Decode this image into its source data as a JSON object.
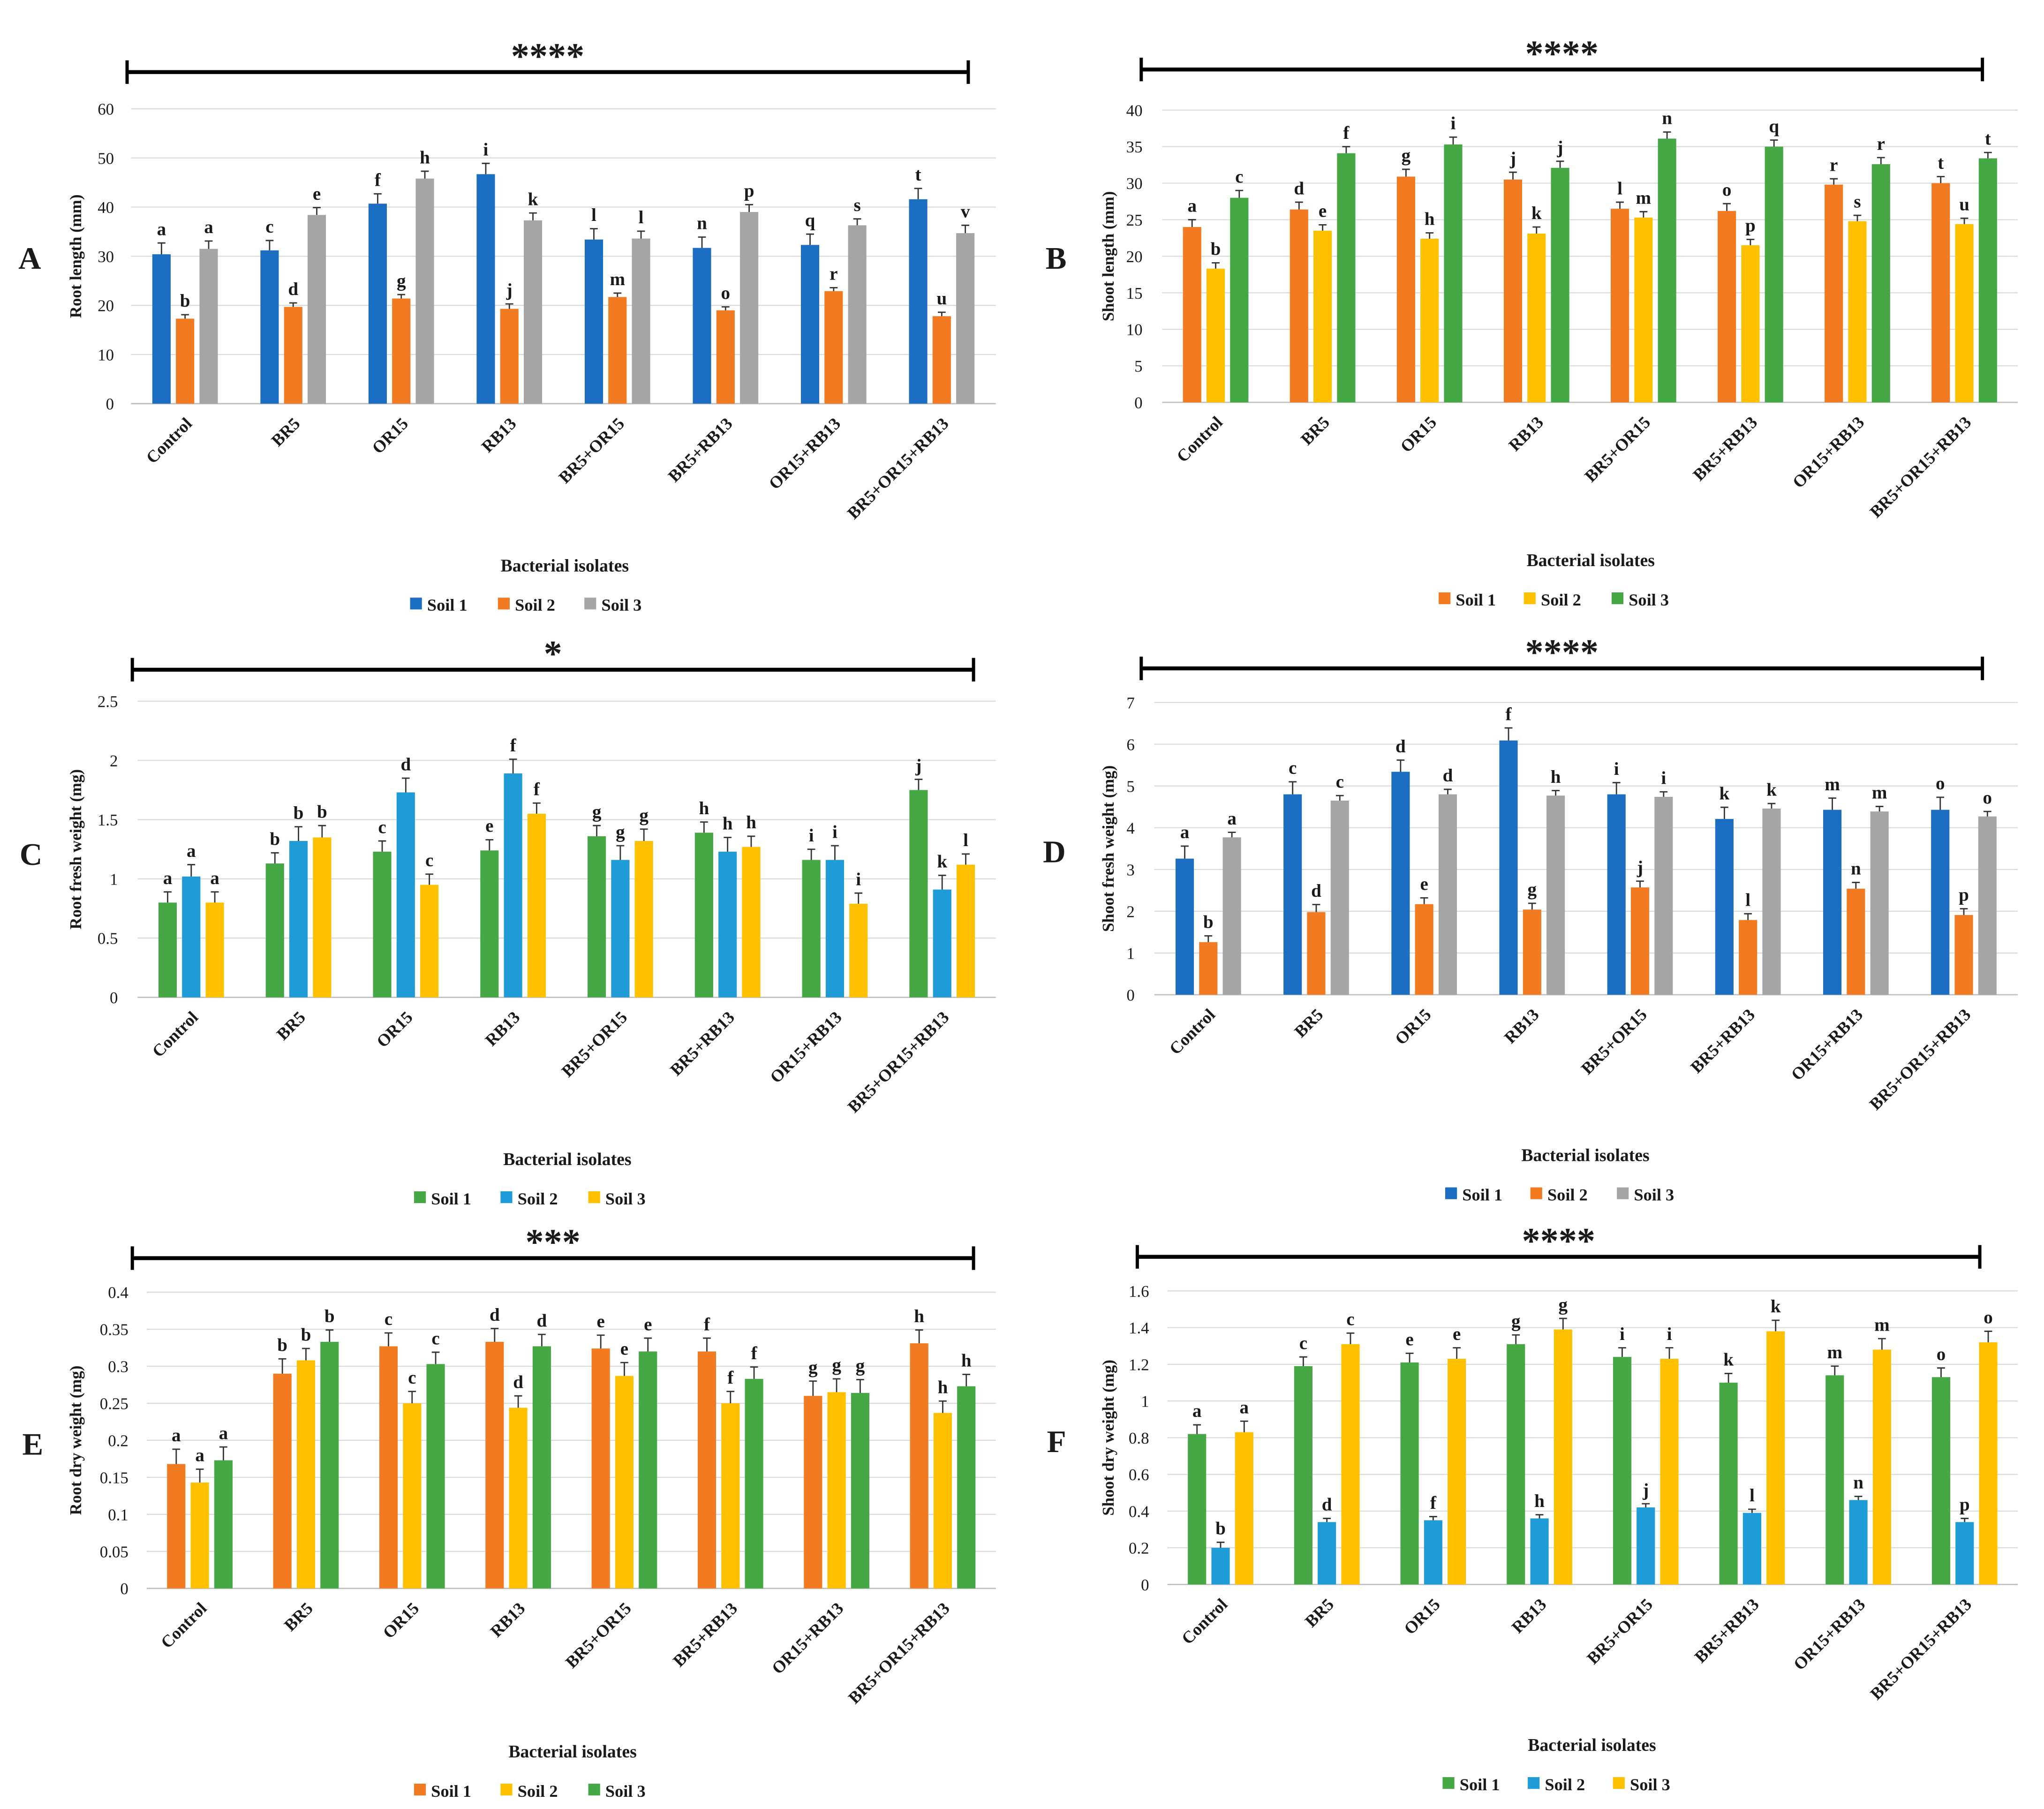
{
  "chart_data": [
    {
      "panel": "A",
      "type": "bar",
      "significance": "****",
      "xlabel": "Bacterial isolates",
      "ylabel": "Root length (mm)",
      "ylim": [
        0,
        60
      ],
      "yticks": [
        "0",
        "10",
        "20",
        "30",
        "40",
        "50",
        "60"
      ],
      "legend_position": "bottom",
      "categories": [
        "Control",
        "BR5",
        "OR15",
        "RB13",
        "BR5+OR15",
        "BR5+RB13",
        "OR15+RB13",
        "BR5+OR15+RB13"
      ],
      "series": [
        {
          "name": "Soil 1",
          "color": "#1B6EC2",
          "values": [
            30.4,
            31.2,
            40.7,
            46.7,
            33.4,
            31.7,
            32.3,
            41.6
          ],
          "errors": [
            2.3,
            2.0,
            2.0,
            2.2,
            2.2,
            2.2,
            2.2,
            2.2
          ],
          "letters": [
            "a",
            "c",
            "f",
            "i",
            "l",
            "n",
            "q",
            "t"
          ]
        },
        {
          "name": "Soil 2",
          "color": "#F27B22",
          "values": [
            17.3,
            19.7,
            21.4,
            19.3,
            21.7,
            19.0,
            22.9,
            17.8
          ],
          "errors": [
            0.8,
            0.8,
            0.8,
            1.0,
            0.8,
            0.7,
            0.7,
            0.8
          ],
          "letters": [
            "b",
            "d",
            "g",
            "j",
            "m",
            "o",
            "r",
            "u"
          ]
        },
        {
          "name": "Soil 3",
          "color": "#A5A5A5",
          "values": [
            31.5,
            38.4,
            45.8,
            37.3,
            33.6,
            39.0,
            36.3,
            34.7
          ],
          "errors": [
            1.6,
            1.5,
            1.5,
            1.5,
            1.5,
            1.5,
            1.3,
            1.6
          ],
          "letters": [
            "a",
            "e",
            "h",
            "k",
            "l",
            "p",
            "s",
            "v"
          ]
        }
      ]
    },
    {
      "panel": "B",
      "type": "bar",
      "significance": "****",
      "xlabel": "Bacterial isolates",
      "ylabel": "Shoot length (mm)",
      "ylim": [
        0,
        40
      ],
      "yticks": [
        "0",
        "5",
        "10",
        "15",
        "20",
        "25",
        "30",
        "35",
        "40"
      ],
      "legend_position": "bottom",
      "categories": [
        "Control",
        "BR5",
        "OR15",
        "RB13",
        "BR5+OR15",
        "BR5+RB13",
        "OR15+RB13",
        "BR5+OR15+RB13"
      ],
      "series": [
        {
          "name": "Soil 1",
          "color": "#F27B22",
          "values": [
            24.0,
            26.4,
            30.9,
            30.5,
            26.5,
            26.2,
            29.8,
            30.0
          ],
          "errors": [
            1.0,
            1.0,
            1.0,
            1.0,
            0.9,
            1.0,
            0.8,
            0.9
          ],
          "letters": [
            "a",
            "d",
            "g",
            "j",
            "l",
            "o",
            "r",
            "t"
          ]
        },
        {
          "name": "Soil 2",
          "color": "#FFC000",
          "values": [
            18.3,
            23.5,
            22.4,
            23.1,
            25.3,
            21.5,
            24.8,
            24.4
          ],
          "errors": [
            0.8,
            0.8,
            0.8,
            0.9,
            0.8,
            0.8,
            0.8,
            0.8
          ],
          "letters": [
            "b",
            "e",
            "h",
            "k",
            "m",
            "p",
            "s",
            "u"
          ]
        },
        {
          "name": "Soil 3",
          "color": "#45A845",
          "values": [
            28.0,
            34.1,
            35.3,
            32.1,
            36.1,
            35.0,
            32.6,
            33.4
          ],
          "errors": [
            1.0,
            0.9,
            1.0,
            0.9,
            0.9,
            0.9,
            0.9,
            0.8
          ],
          "letters": [
            "c",
            "f",
            "i",
            "j",
            "n",
            "q",
            "r",
            "t"
          ]
        }
      ]
    },
    {
      "panel": "C",
      "type": "bar",
      "significance": "*",
      "xlabel": "Bacterial isolates",
      "ylabel": "Root fresh weight (mg)",
      "ylim": [
        0,
        2.5
      ],
      "yticks": [
        "0",
        "0.5",
        "1",
        "1.5",
        "2",
        "2.5"
      ],
      "legend_position": "bottom",
      "categories": [
        "Control",
        "BR5",
        "OR15",
        "RB13",
        "BR5+OR15",
        "BR5+RB13",
        "OR15+RB13",
        "BR5+OR15+RB13"
      ],
      "series": [
        {
          "name": "Soil 1",
          "color": "#45A845",
          "values": [
            0.8,
            1.13,
            1.23,
            1.24,
            1.36,
            1.39,
            1.16,
            1.75
          ],
          "errors": [
            0.09,
            0.09,
            0.09,
            0.09,
            0.09,
            0.09,
            0.09,
            0.09
          ],
          "letters": [
            "a",
            "b",
            "c",
            "e",
            "g",
            "h",
            "i",
            "j"
          ]
        },
        {
          "name": "Soil 2",
          "color": "#1F9BD7",
          "values": [
            1.02,
            1.32,
            1.73,
            1.89,
            1.16,
            1.23,
            1.16,
            0.91
          ],
          "errors": [
            0.1,
            0.12,
            0.12,
            0.12,
            0.12,
            0.12,
            0.12,
            0.12
          ],
          "letters": [
            "a",
            "b",
            "d",
            "f",
            "g",
            "h",
            "i",
            "k"
          ]
        },
        {
          "name": "Soil 3",
          "color": "#FFC000",
          "values": [
            0.8,
            1.35,
            0.95,
            1.55,
            1.32,
            1.27,
            0.79,
            1.12
          ],
          "errors": [
            0.09,
            0.1,
            0.09,
            0.09,
            0.1,
            0.09,
            0.09,
            0.09
          ],
          "letters": [
            "a",
            "b",
            "c",
            "f",
            "g",
            "h",
            "i",
            "l"
          ]
        }
      ]
    },
    {
      "panel": "D",
      "type": "bar",
      "significance": "****",
      "xlabel": "Bacterial isolates",
      "ylabel": "Shoot fresh weight (mg)",
      "ylim": [
        0,
        7
      ],
      "yticks": [
        "0",
        "1",
        "2",
        "3",
        "4",
        "5",
        "6",
        "7"
      ],
      "legend_position": "bottom",
      "categories": [
        "Control",
        "BR5",
        "OR15",
        "RB13",
        "BR5+OR15",
        "BR5+RB13",
        "OR15+RB13",
        "BR5+OR15+RB13"
      ],
      "series": [
        {
          "name": "Soil 1",
          "color": "#1B6EC2",
          "values": [
            3.26,
            4.8,
            5.34,
            6.09,
            4.8,
            4.21,
            4.43,
            4.43
          ],
          "errors": [
            0.3,
            0.3,
            0.28,
            0.3,
            0.28,
            0.28,
            0.28,
            0.3
          ],
          "letters": [
            "a",
            "c",
            "d",
            "f",
            "i",
            "k",
            "m",
            "o"
          ]
        },
        {
          "name": "Soil 2",
          "color": "#F27B22",
          "values": [
            1.26,
            1.98,
            2.17,
            2.04,
            2.57,
            1.79,
            2.54,
            1.91
          ],
          "errors": [
            0.15,
            0.18,
            0.15,
            0.15,
            0.15,
            0.15,
            0.15,
            0.15
          ],
          "letters": [
            "b",
            "d",
            "e",
            "g",
            "j",
            "l",
            "n",
            "p"
          ]
        },
        {
          "name": "Soil 3",
          "color": "#A5A5A5",
          "values": [
            3.77,
            4.65,
            4.8,
            4.77,
            4.74,
            4.46,
            4.39,
            4.27
          ],
          "errors": [
            0.12,
            0.12,
            0.12,
            0.12,
            0.12,
            0.12,
            0.12,
            0.12
          ],
          "letters": [
            "a",
            "c",
            "d",
            "h",
            "i",
            "k",
            "m",
            "o"
          ]
        }
      ]
    },
    {
      "panel": "E",
      "type": "bar",
      "significance": "***",
      "xlabel": "Bacterial isolates",
      "ylabel": "Root dry weight (mg)",
      "ylim": [
        0,
        0.4
      ],
      "yticks": [
        "0",
        "0.05",
        "0.1",
        "0.15",
        "0.2",
        "0.25",
        "0.3",
        "0.35",
        "0.4"
      ],
      "legend_position": "bottom",
      "categories": [
        "Control",
        "BR5",
        "OR15",
        "RB13",
        "BR5+OR15",
        "BR5+RB13",
        "OR15+RB13",
        "BR5+OR15+RB13"
      ],
      "series": [
        {
          "name": "Soil 1",
          "color": "#F27B22",
          "values": [
            0.168,
            0.29,
            0.327,
            0.333,
            0.324,
            0.32,
            0.26,
            0.331
          ],
          "errors": [
            0.02,
            0.02,
            0.018,
            0.018,
            0.018,
            0.018,
            0.02,
            0.018
          ],
          "letters": [
            "a",
            "b",
            "c",
            "d",
            "e",
            "f",
            "g",
            "h"
          ]
        },
        {
          "name": "Soil 2",
          "color": "#FFC000",
          "values": [
            0.143,
            0.308,
            0.25,
            0.244,
            0.287,
            0.25,
            0.265,
            0.237
          ],
          "errors": [
            0.018,
            0.016,
            0.016,
            0.016,
            0.018,
            0.016,
            0.018,
            0.016
          ],
          "letters": [
            "a",
            "b",
            "c",
            "d",
            "e",
            "f",
            "g",
            "h"
          ]
        },
        {
          "name": "Soil 3",
          "color": "#45A845",
          "values": [
            0.173,
            0.333,
            0.303,
            0.327,
            0.32,
            0.283,
            0.264,
            0.273
          ],
          "errors": [
            0.018,
            0.016,
            0.016,
            0.016,
            0.018,
            0.016,
            0.018,
            0.016
          ],
          "letters": [
            "a",
            "b",
            "c",
            "d",
            "e",
            "f",
            "g",
            "h"
          ]
        }
      ]
    },
    {
      "panel": "F",
      "type": "bar",
      "significance": "****",
      "xlabel": "Bacterial isolates",
      "ylabel": "Shoot dry weight (mg)",
      "ylim": [
        0,
        1.6
      ],
      "yticks": [
        "0",
        "0.2",
        "0.4",
        "0.6",
        "0.8",
        "1",
        "1.2",
        "1.4",
        "1.6"
      ],
      "legend_position": "bottom",
      "categories": [
        "Control",
        "BR5",
        "OR15",
        "RB13",
        "BR5+OR15",
        "BR5+RB13",
        "OR15+RB13",
        "BR5+OR15+RB13"
      ],
      "series": [
        {
          "name": "Soil 1",
          "color": "#45A845",
          "values": [
            0.82,
            1.19,
            1.21,
            1.31,
            1.24,
            1.1,
            1.14,
            1.13
          ],
          "errors": [
            0.05,
            0.05,
            0.05,
            0.05,
            0.05,
            0.05,
            0.05,
            0.05
          ],
          "letters": [
            "a",
            "c",
            "e",
            "g",
            "i",
            "k",
            "m",
            "o"
          ]
        },
        {
          "name": "Soil 2",
          "color": "#1F9BD7",
          "values": [
            0.2,
            0.34,
            0.35,
            0.36,
            0.42,
            0.39,
            0.46,
            0.34
          ],
          "errors": [
            0.03,
            0.02,
            0.02,
            0.02,
            0.02,
            0.02,
            0.02,
            0.02
          ],
          "letters": [
            "b",
            "d",
            "f",
            "h",
            "j",
            "l",
            "n",
            "p"
          ]
        },
        {
          "name": "Soil 3",
          "color": "#FFC000",
          "values": [
            0.83,
            1.31,
            1.23,
            1.39,
            1.23,
            1.38,
            1.28,
            1.32
          ],
          "errors": [
            0.06,
            0.06,
            0.06,
            0.06,
            0.06,
            0.06,
            0.06,
            0.06
          ],
          "letters": [
            "a",
            "c",
            "e",
            "g",
            "i",
            "k",
            "m",
            "o"
          ]
        }
      ]
    }
  ]
}
